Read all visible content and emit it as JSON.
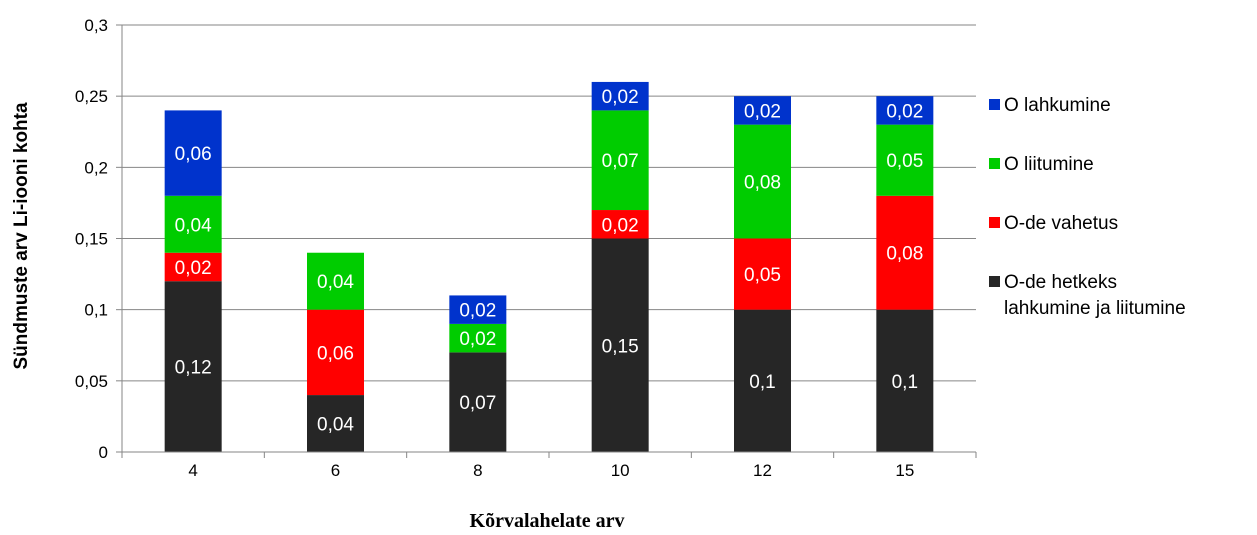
{
  "chart_data": {
    "type": "bar",
    "stacked": true,
    "title": "",
    "xlabel": "Kõrvalahelate arv",
    "ylabel": "Sündmuste arv Li-iooni kohta",
    "ylim": [
      0,
      0.3
    ],
    "yticks": [
      "0",
      "0,05",
      "0,1",
      "0,15",
      "0,2",
      "0,25",
      "0,3"
    ],
    "ytick_values": [
      0,
      0.05,
      0.1,
      0.15,
      0.2,
      0.25,
      0.3
    ],
    "grid": true,
    "legend_position": "right",
    "categories": [
      "4",
      "6",
      "8",
      "10",
      "12",
      "15"
    ],
    "series": [
      {
        "name": "O-de hetkeks lahkumine ja liitumine",
        "legend_lines": [
          "O-de hetkeks",
          "lahkumine ja liitumine"
        ],
        "color": "#262626",
        "values": [
          0.12,
          0.04,
          0.07,
          0.15,
          0.1,
          0.1
        ],
        "labels": [
          "0,12",
          "0,04",
          "0,07",
          "0,15",
          "0,1",
          "0,1"
        ]
      },
      {
        "name": "O-de vahetus",
        "legend_lines": [
          "O-de vahetus"
        ],
        "color": "#ff0000",
        "values": [
          0.02,
          0.06,
          0,
          0.02,
          0.05,
          0.08
        ],
        "labels": [
          "0,02",
          "0,06",
          "",
          "0,02",
          "0,05",
          "0,08"
        ]
      },
      {
        "name": "O liitumine",
        "legend_lines": [
          "O liitumine"
        ],
        "color": "#00cc00",
        "values": [
          0.04,
          0.04,
          0.02,
          0.07,
          0.08,
          0.05
        ],
        "labels": [
          "0,04",
          "0,04",
          "0,02",
          "0,07",
          "0,08",
          "0,05"
        ]
      },
      {
        "name": "O lahkumine",
        "legend_lines": [
          "O lahkumine"
        ],
        "color": "#0033cc",
        "values": [
          0.06,
          0,
          0.02,
          0.02,
          0.02,
          0.02
        ],
        "labels": [
          "0,06",
          "",
          "0,02",
          "0,02",
          "0,02",
          "0,02"
        ]
      }
    ]
  }
}
